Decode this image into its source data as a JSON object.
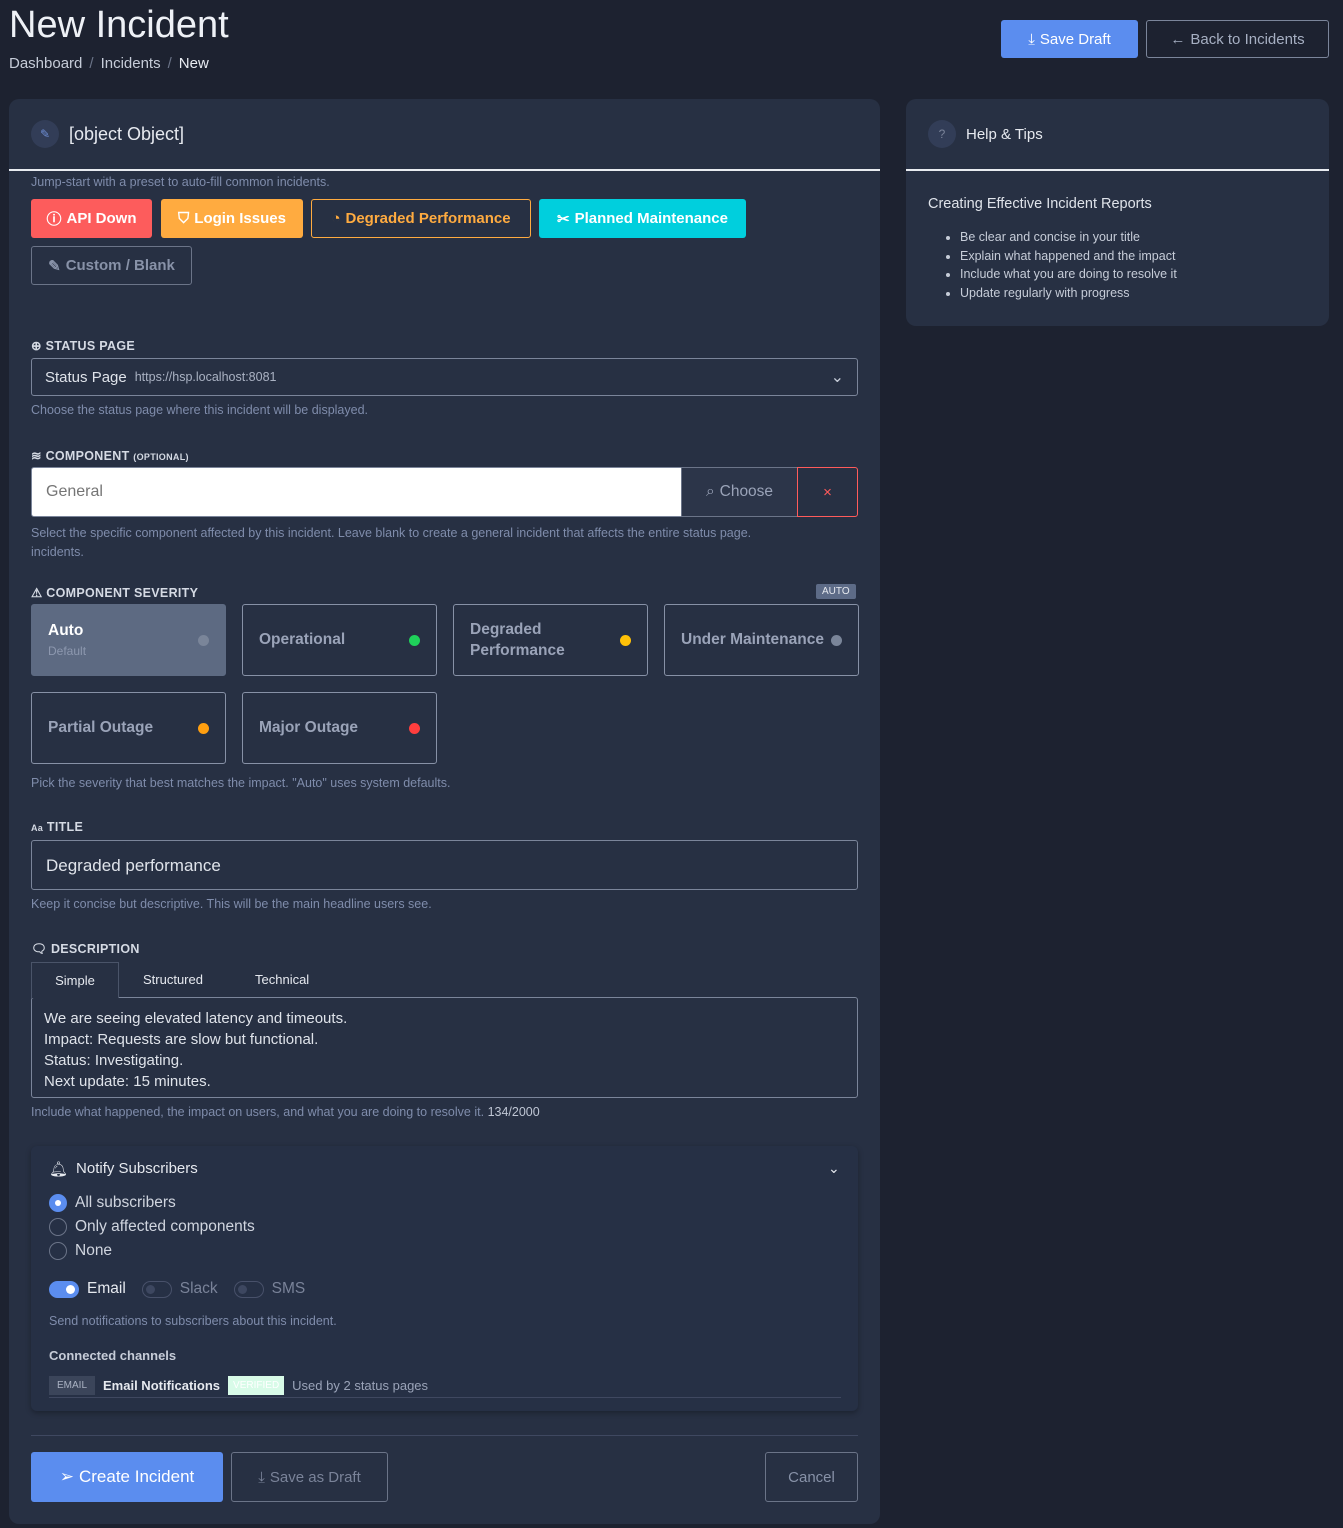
{
  "header": {
    "title": "New Incident",
    "breadcrumb": [
      "Dashboard",
      "Incidents",
      "New"
    ],
    "save_draft": "Save Draft",
    "back": "Back to Incidents"
  },
  "details": {
    "title": {
      "label": "TITLE",
      "value": "Degraded performance",
      "hint": "Keep it concise but descriptive. This will be the main headline users see."
    },
    "preset_hint": "Jump-start with a preset to auto-fill common incidents.",
    "presets": [
      {
        "label": "API Down",
        "color": "#fd5c5c"
      },
      {
        "label": "Login Issues",
        "color": "#ffab40"
      },
      {
        "label": "Degraded Performance",
        "color": "#ffab40"
      },
      {
        "label": "Planned Maintenance",
        "color": "#00cfdd"
      },
      {
        "label": "Custom / Blank",
        "color": "#8892a8"
      }
    ],
    "status_page": {
      "label": "STATUS PAGE",
      "value": "Status Page",
      "url": "https://hsp.localhost:8081",
      "hint": "Choose the status page where this incident will be displayed."
    },
    "component": {
      "label": "COMPONENT",
      "optional": "(OPTIONAL)",
      "placeholder": "General",
      "choose": "Choose",
      "clear": "×",
      "hint": "Select the specific component affected by this incident. Leave blank to create a general incident that affects the entire status page.",
      "hint2": "incidents."
    },
    "severity": {
      "label": "COMPONENT SEVERITY",
      "badge": "AUTO",
      "options": [
        {
          "label": "Auto",
          "sub": "Default",
          "color": "#6b7488",
          "selected": true
        },
        {
          "label": "Operational",
          "color": "#1fd15a"
        },
        {
          "label": "Degraded Performance",
          "color": "#ffc107"
        },
        {
          "label": "Under Maintenance",
          "color": "#7a8599"
        },
        {
          "label": "Partial Outage",
          "color": "#ff9f10"
        },
        {
          "label": "Major Outage",
          "color": "#ff3e3e"
        }
      ],
      "hint": "Pick the severity that best matches the impact. \"Auto\" uses system defaults."
    },
    "description": {
      "label": "DESCRIPTION",
      "tabs": [
        "Simple",
        "Structured",
        "Technical"
      ],
      "active_tab": "Simple",
      "lines": [
        "We are seeing elevated latency and timeouts.",
        "Impact: Requests are slow but functional.",
        "Status: Investigating.",
        "Next update: 15 minutes."
      ],
      "hint": "Include what happened, the impact on users, and what you are doing to resolve it.",
      "count": "134/2000"
    },
    "notify": {
      "title": "Notify Subscribers",
      "options": [
        "All subscribers",
        "Only affected components",
        "None"
      ],
      "selected": "All subscribers",
      "channels": [
        {
          "label": "Email",
          "on": true
        },
        {
          "label": "Slack",
          "on": false
        },
        {
          "label": "SMS",
          "on": false
        }
      ],
      "hint": "Send notifications to subscribers about this incident.",
      "connected_label": "Connected channels",
      "connected": {
        "type": "EMAIL",
        "name": "Email Notifications",
        "badge": "VERIFIED",
        "usage": "Used by 2 status pages"
      }
    },
    "actions": {
      "create": "Create Incident",
      "draft": "Save as Draft",
      "cancel": "Cancel"
    }
  },
  "help": {
    "title": "Help & Tips",
    "subtitle": "Creating Effective Incident Reports",
    "tips": [
      "Be clear and concise in your title",
      "Explain what happened and the impact",
      "Include what you are doing to resolve it",
      "Update regularly with progress"
    ]
  },
  "colors": {
    "primary": "#5b8def",
    "background": "#1d2230",
    "card": "#273043"
  }
}
